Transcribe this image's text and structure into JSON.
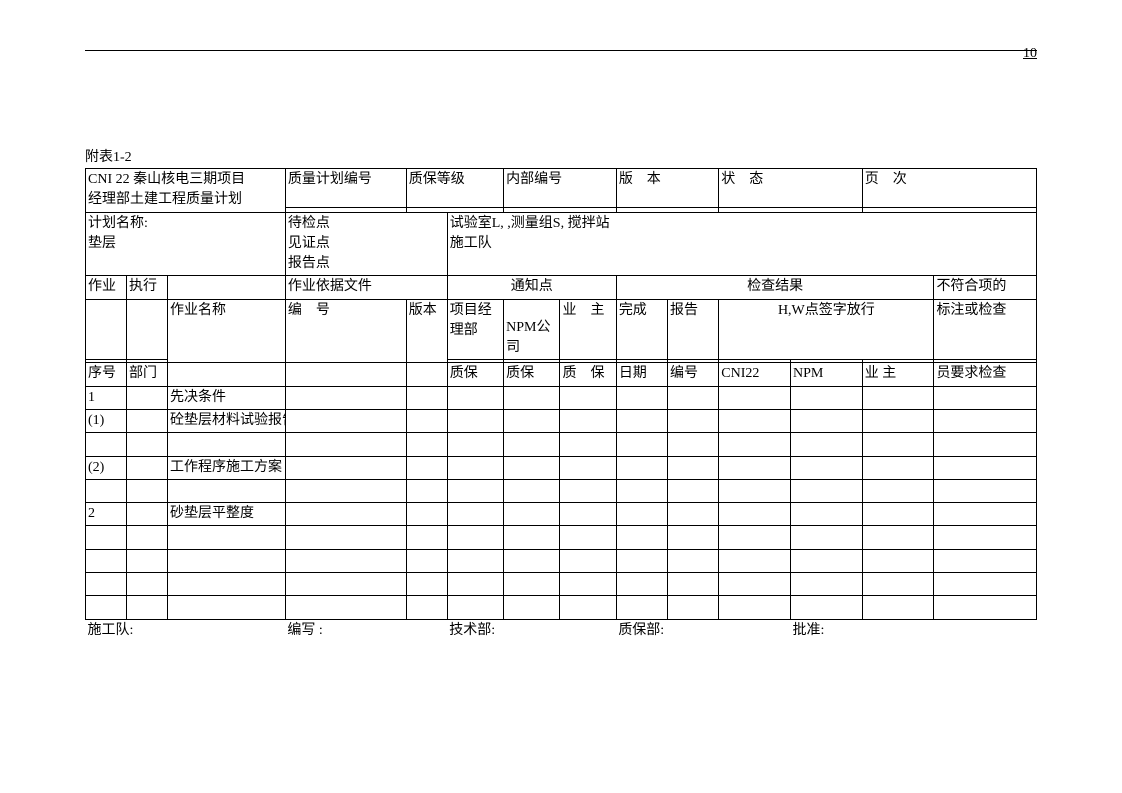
{
  "page_number": "10",
  "caption": "附表1-2",
  "header": {
    "title_line1": "CNI 22  秦山核电三期项目",
    "title_line2": "经理部土建工程质量计划",
    "h1": "质量计划编号",
    "h2": "质保等级",
    "h3": "内部编号",
    "h4": "版　本",
    "h5": "状　态",
    "h6": "页　次"
  },
  "row2": {
    "plan_label": "计划名称:",
    "plan_name": "垫层",
    "points": "待检点\n见证点\n报告点",
    "lab": "试验室L,  ,测量组S, 搅拌站",
    "team": "施工队"
  },
  "head": {
    "zy": "作业",
    "zx": "执行",
    "yj": "作业依据文件",
    "tz": "通知点",
    "jc": "检查结果",
    "bfh": "不符合项的",
    "zymc": "作业名称",
    "bh": "编　号",
    "bb": "版本",
    "xmjlb": "项目经理部",
    "npm": "NPM公司",
    "yz": "业　主",
    "wc": "完成",
    "bg": "报告",
    "hw": "H,W点签字放行",
    "bzjc": "标注或检查",
    "xh": "序号",
    "bm": "部门",
    "qb": "质保",
    "qb2": "质保",
    "qb3": "质　保",
    "rq": "日期",
    "bh2": "编号",
    "cni": "CNI22",
    "npm2": "NPM",
    "yz2": "业 主",
    "yyq": "员要求检查"
  },
  "rows": [
    {
      "c0": "1",
      "c2": "先决条件"
    },
    {
      "c0": "(1)",
      "c2": "砼垫层材料试验报告"
    },
    {},
    {
      "c0": "(2)",
      "c2": "工作程序施工方案"
    },
    {},
    {
      "c0": "2",
      "c2": "砂垫层平整度"
    },
    {},
    {},
    {},
    {}
  ],
  "footer": {
    "f1": "施工队:",
    "f2": "编写  :",
    "f3": "技术部:",
    "f4": "质保部:",
    "f5": "批准:"
  }
}
